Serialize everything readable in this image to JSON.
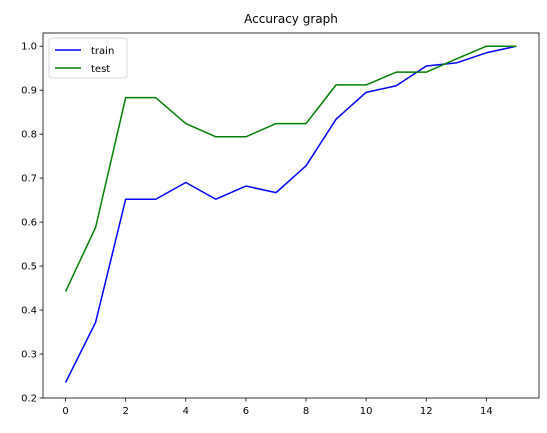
{
  "chart_data": {
    "type": "line",
    "title": "Accuracy graph",
    "xlabel": "",
    "ylabel": "",
    "x": [
      0,
      1,
      2,
      3,
      4,
      5,
      6,
      7,
      8,
      9,
      10,
      11,
      12,
      13,
      14,
      15
    ],
    "xlim": [
      -0.75,
      15.75
    ],
    "ylim": [
      0.2,
      1.03
    ],
    "xticks": [
      0,
      2,
      4,
      6,
      8,
      10,
      12,
      14
    ],
    "yticks": [
      0.2,
      0.3,
      0.4,
      0.5,
      0.6,
      0.7,
      0.8,
      0.9,
      1.0
    ],
    "xtick_labels": [
      "0",
      "2",
      "4",
      "6",
      "8",
      "10",
      "12",
      "14"
    ],
    "ytick_labels": [
      "0.2",
      "0.3",
      "0.4",
      "0.5",
      "0.6",
      "0.7",
      "0.8",
      "0.9",
      "1.0"
    ],
    "grid": false,
    "legend_position": "top-left",
    "series": [
      {
        "name": "train",
        "color": "#0000ff",
        "values": [
          0.235,
          0.372,
          0.652,
          0.652,
          0.69,
          0.652,
          0.682,
          0.667,
          0.728,
          0.834,
          0.895,
          0.91,
          0.955,
          0.962,
          0.985,
          1.0
        ]
      },
      {
        "name": "test",
        "color": "#008000",
        "values": [
          0.442,
          0.588,
          0.883,
          0.883,
          0.824,
          0.794,
          0.794,
          0.824,
          0.824,
          0.912,
          0.912,
          0.941,
          0.941,
          0.971,
          1.0,
          1.0
        ]
      }
    ]
  }
}
